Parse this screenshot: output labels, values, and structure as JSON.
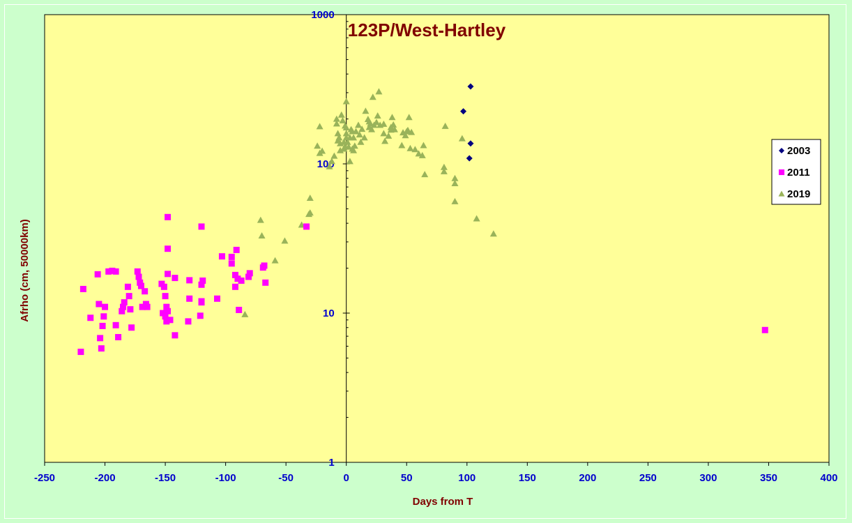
{
  "chart_data": {
    "type": "scatter",
    "title": "123P/West-Hartley",
    "xlabel": "Days from T",
    "ylabel": "Afrho (cm, 50000km)",
    "xlim": [
      -250,
      400
    ],
    "ylim": [
      1,
      1000
    ],
    "y_scale": "log",
    "x_ticks": [
      -250,
      -200,
      -150,
      -100,
      -50,
      0,
      50,
      100,
      150,
      200,
      250,
      300,
      350,
      400
    ],
    "y_ticks": [
      1,
      10,
      100,
      1000
    ],
    "grid": false,
    "legend_position": "right",
    "plot_background": "#ffff99",
    "series": [
      {
        "name": "2003",
        "marker": "diamond",
        "color": "#000080",
        "points": [
          [
            103,
            330
          ],
          [
            97,
            225
          ],
          [
            103,
            137
          ],
          [
            102,
            109
          ]
        ]
      },
      {
        "name": "2011",
        "marker": "square",
        "color": "#ff00ff",
        "points": [
          [
            -220,
            5.5
          ],
          [
            -218,
            14.5
          ],
          [
            -212,
            9.3
          ],
          [
            -206,
            18.2
          ],
          [
            -205,
            11.5
          ],
          [
            -204,
            6.8
          ],
          [
            -203,
            5.8
          ],
          [
            -202,
            8.2
          ],
          [
            -201,
            9.5
          ],
          [
            -200,
            11
          ],
          [
            -197,
            19
          ],
          [
            -194,
            19.2
          ],
          [
            -191,
            19
          ],
          [
            -191,
            8.3
          ],
          [
            -189,
            6.9
          ],
          [
            -186,
            10.3
          ],
          [
            -185,
            11
          ],
          [
            -184,
            11.8
          ],
          [
            -181,
            15
          ],
          [
            -180,
            13
          ],
          [
            -179,
            10.6
          ],
          [
            -178,
            8
          ],
          [
            -173,
            19
          ],
          [
            -172,
            17.5
          ],
          [
            -171,
            16
          ],
          [
            -170,
            15.2
          ],
          [
            -169,
            11
          ],
          [
            -167,
            14
          ],
          [
            -166,
            11.5
          ],
          [
            -165,
            11
          ],
          [
            -153,
            15.7
          ],
          [
            -152,
            10
          ],
          [
            -151,
            15
          ],
          [
            -150,
            9.5
          ],
          [
            -150,
            13
          ],
          [
            -149,
            11
          ],
          [
            -149,
            8.8
          ],
          [
            -148,
            10.3
          ],
          [
            -148,
            18.3
          ],
          [
            -148,
            27
          ],
          [
            -148,
            44
          ],
          [
            -146,
            9
          ],
          [
            -142,
            7.1
          ],
          [
            -142,
            17.2
          ],
          [
            -131,
            8.8
          ],
          [
            -130,
            12.5
          ],
          [
            -130,
            16.6
          ],
          [
            -121,
            9.6
          ],
          [
            -120,
            11.8
          ],
          [
            -120,
            12
          ],
          [
            -120,
            15.5
          ],
          [
            -119,
            16.5
          ],
          [
            -120,
            38
          ],
          [
            -107,
            12.5
          ],
          [
            -103,
            24
          ],
          [
            -95,
            21.5
          ],
          [
            -95,
            23.8
          ],
          [
            -92,
            18
          ],
          [
            -92,
            15
          ],
          [
            -91,
            26.5
          ],
          [
            -90,
            17
          ],
          [
            -89,
            10.5
          ],
          [
            -87,
            16.5
          ],
          [
            -81,
            17.5
          ],
          [
            -80,
            18.5
          ],
          [
            -69,
            20.2
          ],
          [
            -68,
            20.8
          ],
          [
            -67,
            16
          ],
          [
            -33,
            38
          ],
          [
            347,
            7.7
          ]
        ]
      },
      {
        "name": "2019",
        "marker": "triangle",
        "color": "#99b35a",
        "points": [
          [
            -84,
            9.8
          ],
          [
            -71,
            42
          ],
          [
            -70,
            33
          ],
          [
            -59,
            22.5
          ],
          [
            -51,
            30.5
          ],
          [
            -37,
            39
          ],
          [
            -31,
            46
          ],
          [
            -30,
            47
          ],
          [
            -30,
            59
          ],
          [
            -24,
            132
          ],
          [
            -22,
            118
          ],
          [
            -22,
            178
          ],
          [
            -20,
            122
          ],
          [
            -14,
            96
          ],
          [
            -12,
            104
          ],
          [
            -10,
            113
          ],
          [
            -8,
            200
          ],
          [
            -8,
            186
          ],
          [
            -7,
            160
          ],
          [
            -7,
            143
          ],
          [
            -6,
            150
          ],
          [
            -5,
            137
          ],
          [
            -5,
            123
          ],
          [
            -4,
            213
          ],
          [
            -3,
            195
          ],
          [
            -2,
            126
          ],
          [
            -2,
            140
          ],
          [
            -1,
            131
          ],
          [
            -1,
            180
          ],
          [
            0,
            262
          ],
          [
            0,
            175
          ],
          [
            0,
            160
          ],
          [
            0,
            150
          ],
          [
            1,
            140
          ],
          [
            2,
            130
          ],
          [
            3,
            104
          ],
          [
            3,
            150
          ],
          [
            4,
            170
          ],
          [
            5,
            165
          ],
          [
            5,
            126
          ],
          [
            6,
            123
          ],
          [
            6,
            150
          ],
          [
            7,
            132
          ],
          [
            8,
            165
          ],
          [
            10,
            182
          ],
          [
            11,
            157
          ],
          [
            12,
            140
          ],
          [
            13,
            171
          ],
          [
            15,
            150
          ],
          [
            16,
            226
          ],
          [
            18,
            199
          ],
          [
            19,
            176
          ],
          [
            19,
            192
          ],
          [
            20,
            186
          ],
          [
            21,
            170
          ],
          [
            22,
            280
          ],
          [
            23,
            182
          ],
          [
            25,
            190
          ],
          [
            26,
            210
          ],
          [
            27,
            305
          ],
          [
            28,
            182
          ],
          [
            31,
            185
          ],
          [
            31,
            160
          ],
          [
            32,
            142
          ],
          [
            35,
            154
          ],
          [
            37,
            176
          ],
          [
            37,
            169
          ],
          [
            38,
            205
          ],
          [
            39,
            183
          ],
          [
            40,
            170
          ],
          [
            46,
            133
          ],
          [
            47,
            162
          ],
          [
            49,
            155
          ],
          [
            50,
            165
          ],
          [
            51,
            168
          ],
          [
            52,
            205
          ],
          [
            53,
            127
          ],
          [
            54,
            163
          ],
          [
            57,
            125
          ],
          [
            60,
            117
          ],
          [
            63,
            114
          ],
          [
            64,
            133
          ],
          [
            65,
            85
          ],
          [
            81,
            95
          ],
          [
            81,
            89
          ],
          [
            82,
            179
          ],
          [
            90,
            80
          ],
          [
            90,
            74
          ],
          [
            90,
            56
          ],
          [
            96,
            148
          ],
          [
            108,
            43
          ],
          [
            122,
            34
          ]
        ]
      }
    ]
  }
}
